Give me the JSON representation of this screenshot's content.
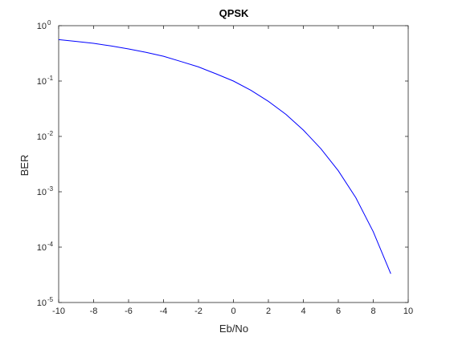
{
  "chart_data": {
    "type": "line",
    "title": "QPSK",
    "xlabel": "Eb/No",
    "ylabel": "BER",
    "xlim": [
      -10,
      10
    ],
    "ylim": [
      1e-05,
      1
    ],
    "yscale": "log",
    "grid": false,
    "x_ticks": [
      "-10",
      "-8",
      "-6",
      "-4",
      "-2",
      "0",
      "2",
      "4",
      "6",
      "8",
      "10"
    ],
    "y_ticks": [
      {
        "base": "10",
        "exp": "-5"
      },
      {
        "base": "10",
        "exp": "-4"
      },
      {
        "base": "10",
        "exp": "-3"
      },
      {
        "base": "10",
        "exp": "-2"
      },
      {
        "base": "10",
        "exp": "-1"
      },
      {
        "base": "10",
        "exp": "0"
      }
    ],
    "series": [
      {
        "color": "#0000ff",
        "x": [
          -10,
          -9,
          -8,
          -7,
          -6,
          -5,
          -4,
          -3,
          -2,
          -1,
          0,
          1,
          2,
          3,
          4,
          5,
          6,
          7,
          8,
          9
        ],
        "y": [
          0.56,
          0.52,
          0.48,
          0.43,
          0.38,
          0.33,
          0.28,
          0.225,
          0.18,
          0.135,
          0.1,
          0.068,
          0.043,
          0.025,
          0.013,
          0.006,
          0.0024,
          0.00078,
          0.00019,
          3.3e-05
        ]
      }
    ]
  }
}
